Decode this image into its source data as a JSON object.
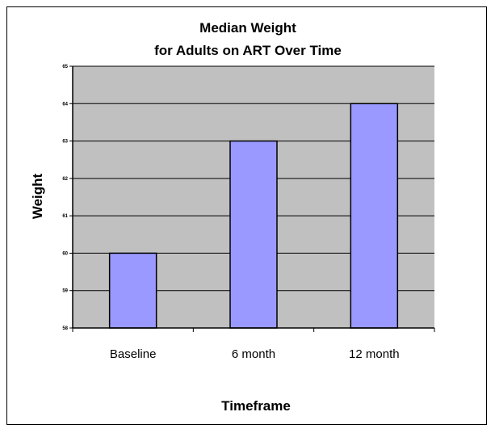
{
  "chart_data": {
    "type": "bar",
    "title_line1": "Median Weight",
    "title_line2": "for Adults on ART Over Time",
    "xlabel": "Timeframe",
    "ylabel": "Weight",
    "categories": [
      "Baseline",
      "6 month",
      "12 month"
    ],
    "values": [
      60,
      63,
      64
    ],
    "ylim": [
      58,
      65
    ],
    "yticks": [
      "58",
      "59",
      "60",
      "61",
      "62",
      "63",
      "64",
      "65"
    ],
    "grid": true,
    "legend": "none",
    "colors": {
      "bar": "#9999ff",
      "plot_bg": "#c0c0c0",
      "gridline": "#000000",
      "bar_stroke": "#000000"
    }
  }
}
